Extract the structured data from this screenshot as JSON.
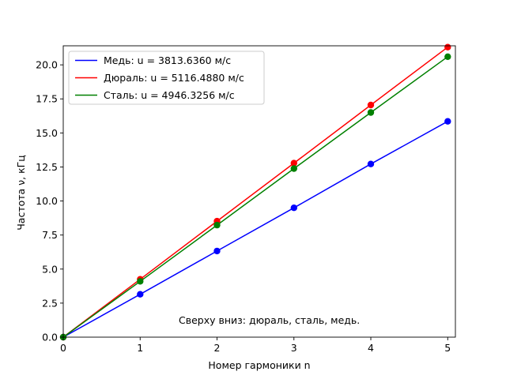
{
  "chart_data": {
    "type": "line",
    "title": "",
    "xlabel": "Номер гармоники n",
    "ylabel": "Частота ν, кГц",
    "xlim": [
      0,
      5.1
    ],
    "ylim": [
      0,
      21.4
    ],
    "grid": false,
    "legend_position": "top-left",
    "x_ticks": [
      0,
      1,
      2,
      3,
      4,
      5
    ],
    "x_tick_labels": [
      "0",
      "1",
      "2",
      "3",
      "4",
      "5"
    ],
    "y_ticks": [
      0,
      2.5,
      5,
      7.5,
      10,
      12.5,
      15,
      17.5,
      20
    ],
    "y_tick_labels": [
      "0.0",
      "2.5",
      "5.0",
      "7.5",
      "10.0",
      "12.5",
      "15.0",
      "17.5",
      "20.0"
    ],
    "x": [
      0,
      1,
      2,
      3,
      4,
      5
    ],
    "series": [
      {
        "name": "Медь: u = 3813.6360 м/с",
        "color": "#0000ff",
        "points": [
          [
            0,
            0
          ],
          [
            1,
            3.15
          ],
          [
            2,
            6.33
          ],
          [
            3,
            9.5
          ],
          [
            4,
            12.72
          ],
          [
            5,
            15.85
          ]
        ]
      },
      {
        "name": "Дюраль: u = 5116.4880 м/с",
        "color": "#ff0000",
        "points": [
          [
            0,
            0
          ],
          [
            1,
            4.25
          ],
          [
            2,
            8.52
          ],
          [
            3,
            12.78
          ],
          [
            4,
            17.05
          ],
          [
            5,
            21.3
          ]
        ]
      },
      {
        "name": "Сталь: u = 4946.3256 м/с",
        "color": "#008000",
        "points": [
          [
            0,
            0
          ],
          [
            1,
            4.1
          ],
          [
            2,
            8.23
          ],
          [
            3,
            12.38
          ],
          [
            4,
            16.5
          ],
          [
            5,
            20.6
          ]
        ]
      }
    ],
    "annotation": "Сверху вниз: дюраль, сталь, медь."
  }
}
